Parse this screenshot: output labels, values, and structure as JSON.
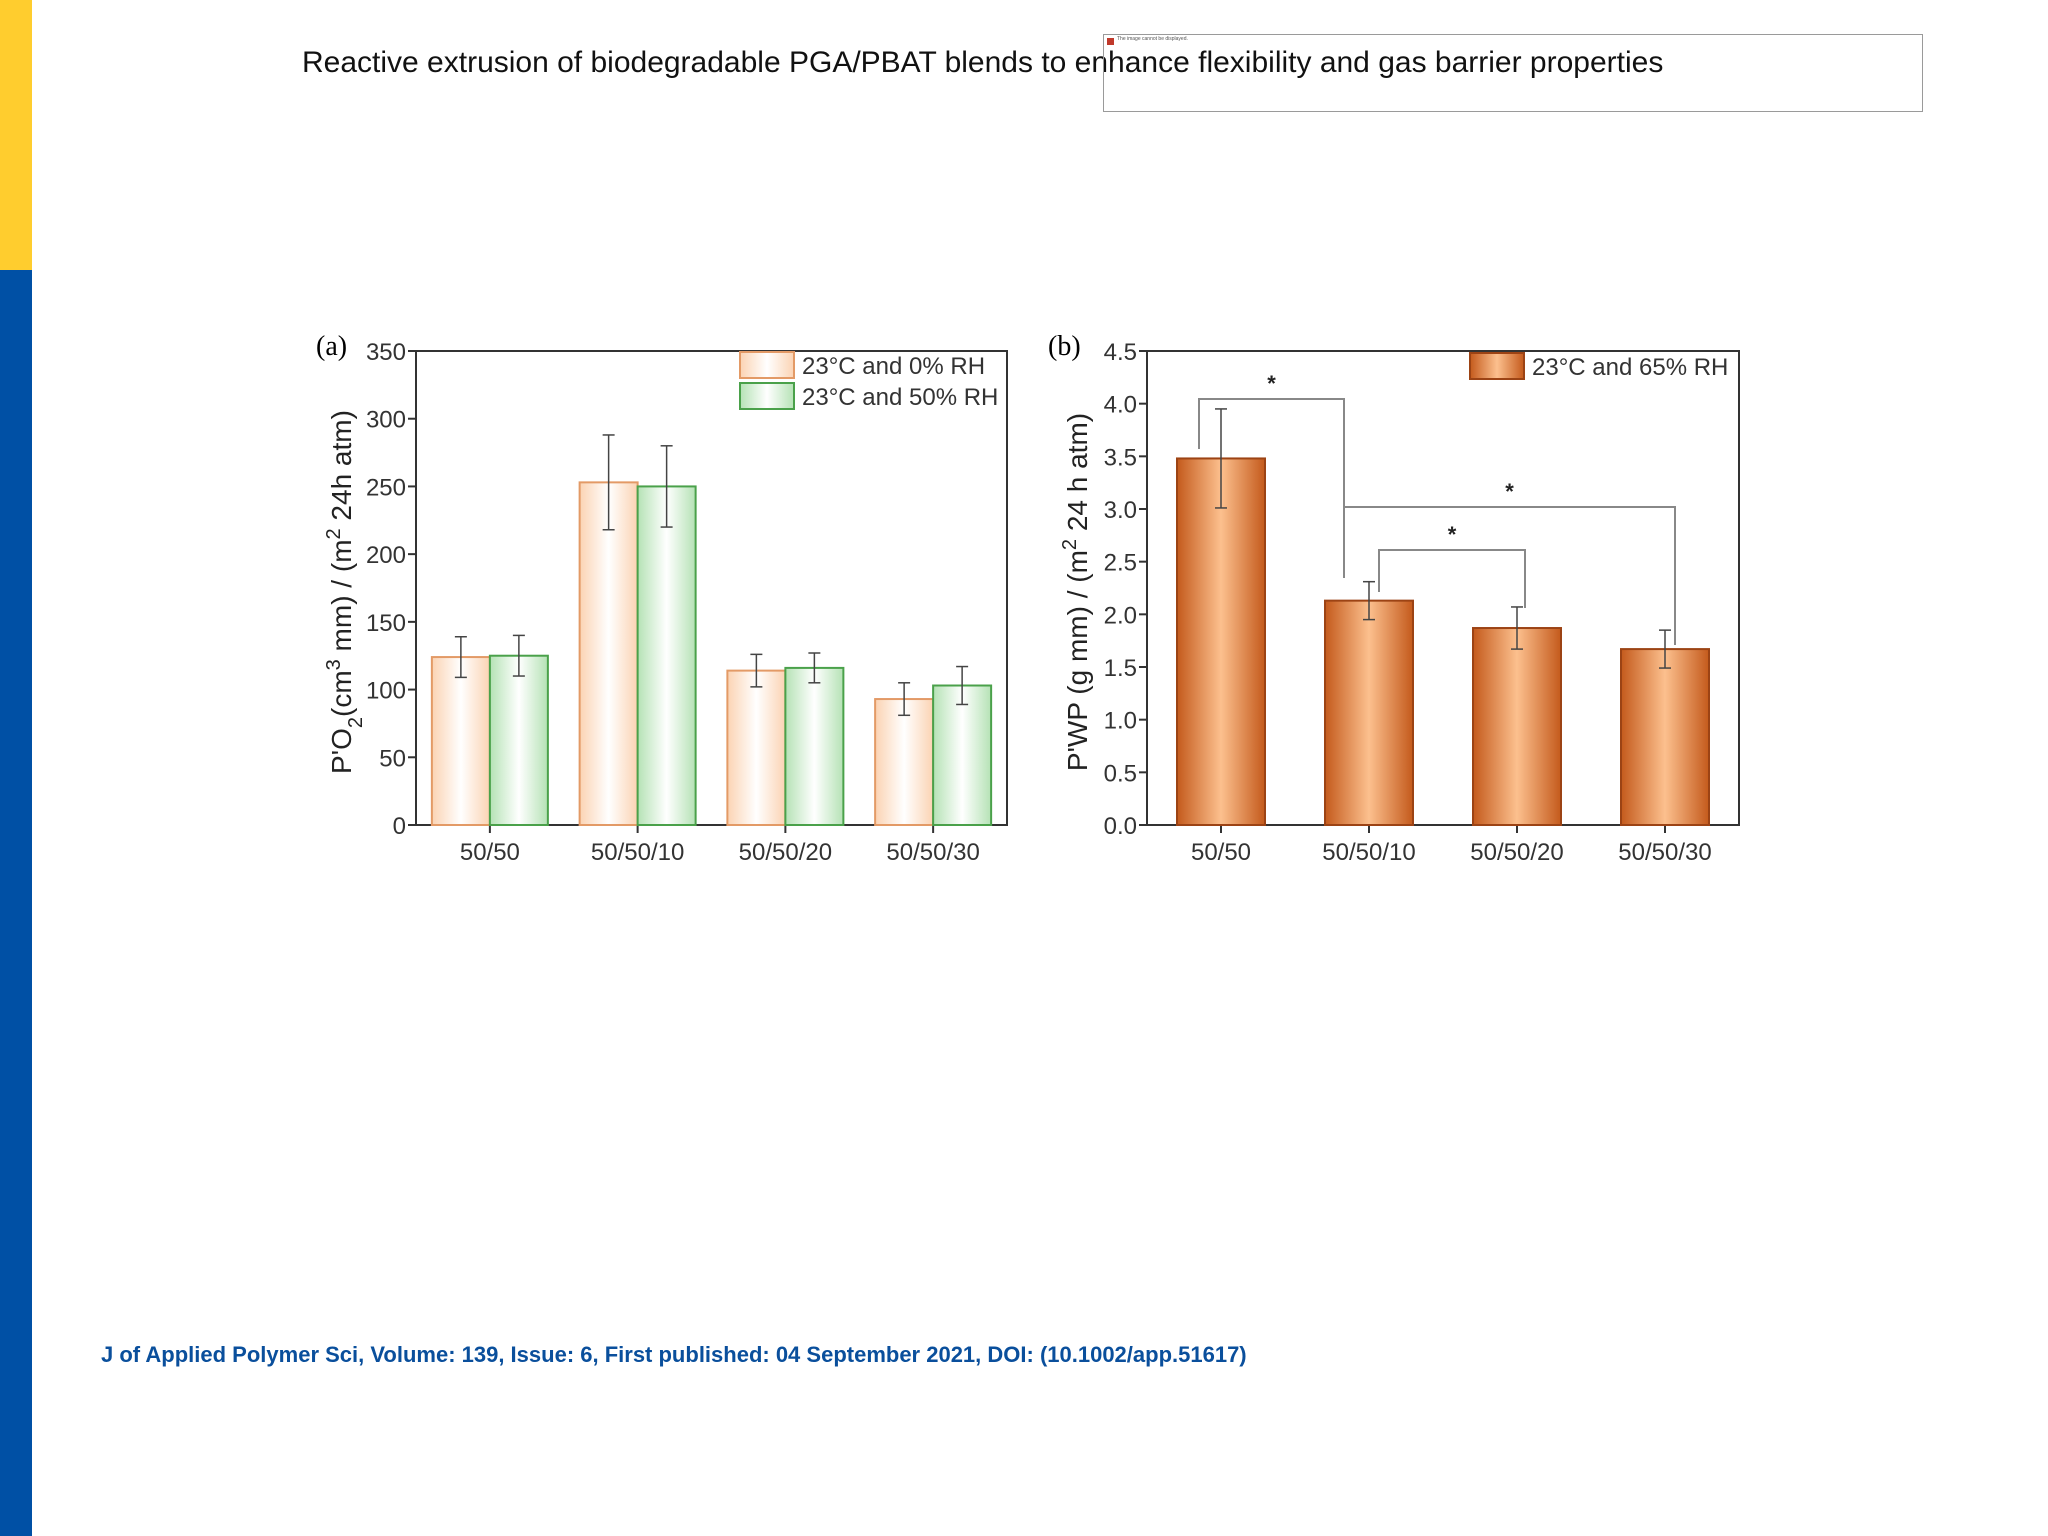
{
  "slide": {
    "title": "Reactive extrusion of biodegradable PGA/PBAT blends to enhance flexibility and gas barrier properties",
    "placeholder_text": "The image cannot be displayed.",
    "citation": "J of Applied Polymer Sci, Volume: 139, Issue: 6, First published: 04 September 2021, DOI: (10.1002/app.51617)",
    "colors": {
      "accent_yellow": "#ffcd2e",
      "accent_blue": "#0050a5",
      "citation": "#0a4f9c"
    }
  },
  "chart_data": [
    {
      "panel": "(a)",
      "type": "bar",
      "ylabel": "P'O2(cm3 mm) / (m2 24h atm)",
      "ylim": [
        0,
        350
      ],
      "yticks": [
        0,
        50,
        100,
        150,
        200,
        250,
        300,
        350
      ],
      "categories": [
        "50/50",
        "50/50/10",
        "50/50/20",
        "50/50/30"
      ],
      "series": [
        {
          "name": "23°C and 0% RH",
          "color": "#f4a46a",
          "values": [
            124,
            253,
            114,
            93
          ],
          "errors": [
            15,
            35,
            12,
            12
          ]
        },
        {
          "name": "23°C and 50% RH",
          "color": "#5cb85c",
          "values": [
            125,
            250,
            116,
            103
          ],
          "errors": [
            15,
            30,
            11,
            14
          ]
        }
      ],
      "legend": "top-right"
    },
    {
      "panel": "(b)",
      "type": "bar",
      "ylabel": "P'WP (g mm) / (m2 24 h atm)",
      "ylim": [
        0,
        4.5
      ],
      "yticks": [
        0.0,
        0.5,
        1.0,
        1.5,
        2.0,
        2.5,
        3.0,
        3.5,
        4.0,
        4.5
      ],
      "categories": [
        "50/50",
        "50/50/10",
        "50/50/20",
        "50/50/30"
      ],
      "series": [
        {
          "name": "23°C and 65% RH",
          "color": "#cc5f1f",
          "values": [
            3.48,
            2.13,
            1.87,
            1.67
          ],
          "errors": [
            0.47,
            0.18,
            0.2,
            0.18
          ]
        }
      ],
      "significance": [
        {
          "from": 0,
          "to": 1,
          "label": "*"
        },
        {
          "from": 1,
          "to": 3,
          "label": "*"
        },
        {
          "from": 1,
          "to": 2,
          "label": "*"
        }
      ],
      "legend": "top-right"
    }
  ]
}
